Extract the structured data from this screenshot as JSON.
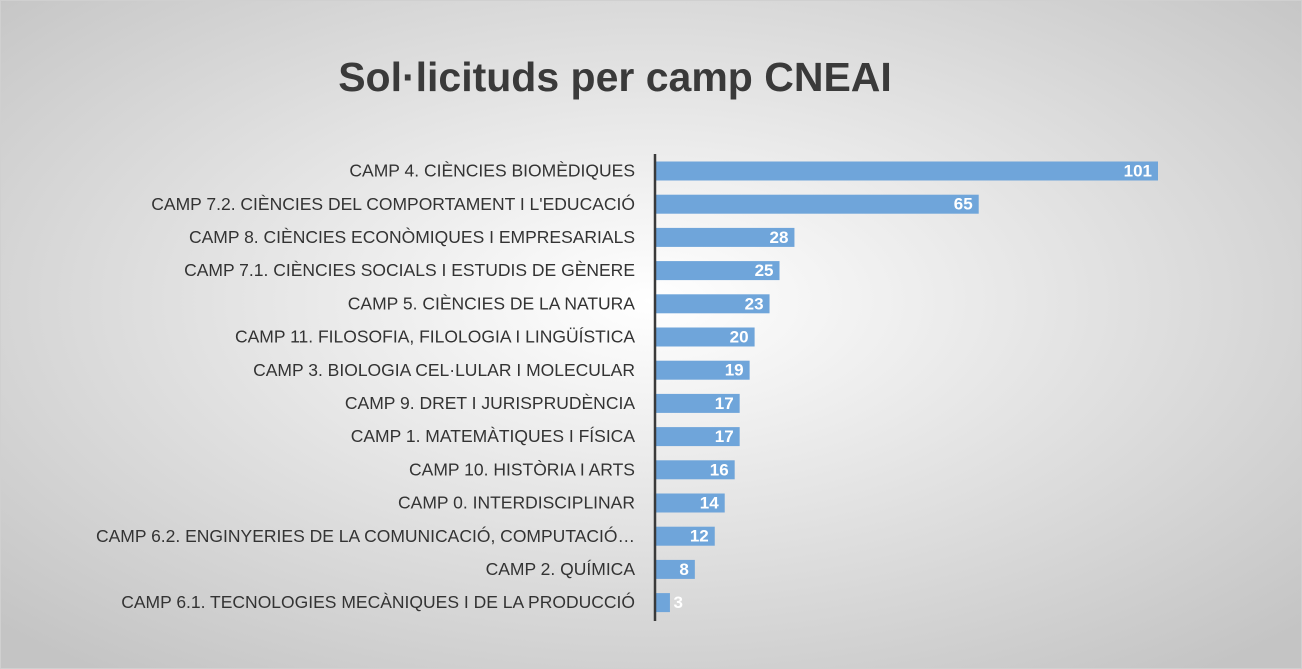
{
  "chart_data": {
    "type": "bar",
    "orientation": "horizontal",
    "title": "Sol·licituds per camp CNEAI",
    "categories": [
      "CAMP 4. CIÈNCIES BIOMÈDIQUES",
      "CAMP 7.2. CIÈNCIES DEL COMPORTAMENT I L'EDUCACIÓ",
      "CAMP 8. CIÈNCIES ECONÒMIQUES I EMPRESARIALS",
      "CAMP 7.1. CIÈNCIES SOCIALS I ESTUDIS DE GÈNERE",
      "CAMP 5. CIÈNCIES DE LA NATURA",
      "CAMP 11. FILOSOFIA, FILOLOGIA I LINGÜÍSTICA",
      "CAMP 3. BIOLOGIA CEL·LULAR I MOLECULAR",
      "CAMP 9. DRET I JURISPRUDÈNCIA",
      "CAMP 1. MATEMÀTIQUES I FÍSICA",
      "CAMP 10. HISTÒRIA I ARTS",
      "CAMP 0. INTERDISCIPLINAR",
      "CAMP 6.2. ENGINYERIES DE LA COMUNICACIÓ, COMPUTACIÓ…",
      "CAMP 2. QUÍMICA",
      "CAMP 6.1. TECNOLOGIES MECÀNIQUES I DE LA PRODUCCIÓ"
    ],
    "values": [
      101,
      65,
      28,
      25,
      23,
      20,
      19,
      17,
      17,
      16,
      14,
      12,
      8,
      3
    ],
    "color": "#6fa5da"
  }
}
